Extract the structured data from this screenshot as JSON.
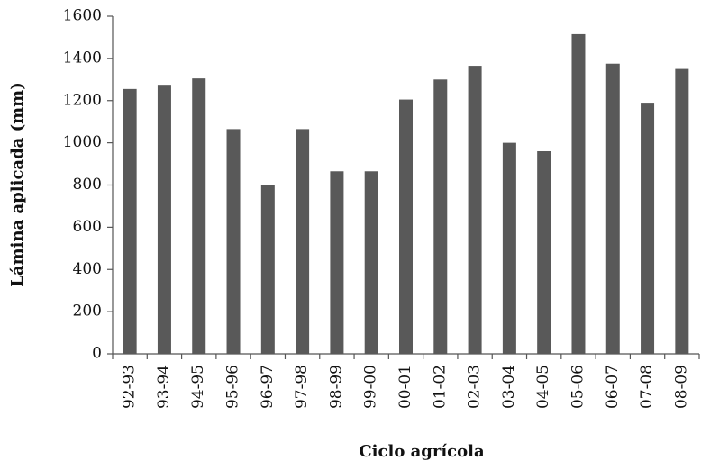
{
  "chart_data": {
    "type": "bar",
    "x_label": "Ciclo agrícola",
    "y_label": "Lámina aplicada (mm)",
    "categories": [
      "92-93",
      "93-94",
      "94-95",
      "95-96",
      "96-97",
      "97-98",
      "98-99",
      "99-00",
      "00-01",
      "01-02",
      "02-03",
      "03-04",
      "04-05",
      "05-06",
      "06-07",
      "07-08",
      "08-09"
    ],
    "values": [
      1255,
      1275,
      1305,
      1065,
      800,
      1065,
      865,
      865,
      1205,
      1300,
      1365,
      1000,
      960,
      1515,
      1375,
      1190,
      1350
    ],
    "color": "#595959",
    "ylim": [
      0,
      1600
    ],
    "yticks": [
      0,
      200,
      400,
      600,
      800,
      1000,
      1200,
      1400,
      1600
    ],
    "grid": false
  }
}
